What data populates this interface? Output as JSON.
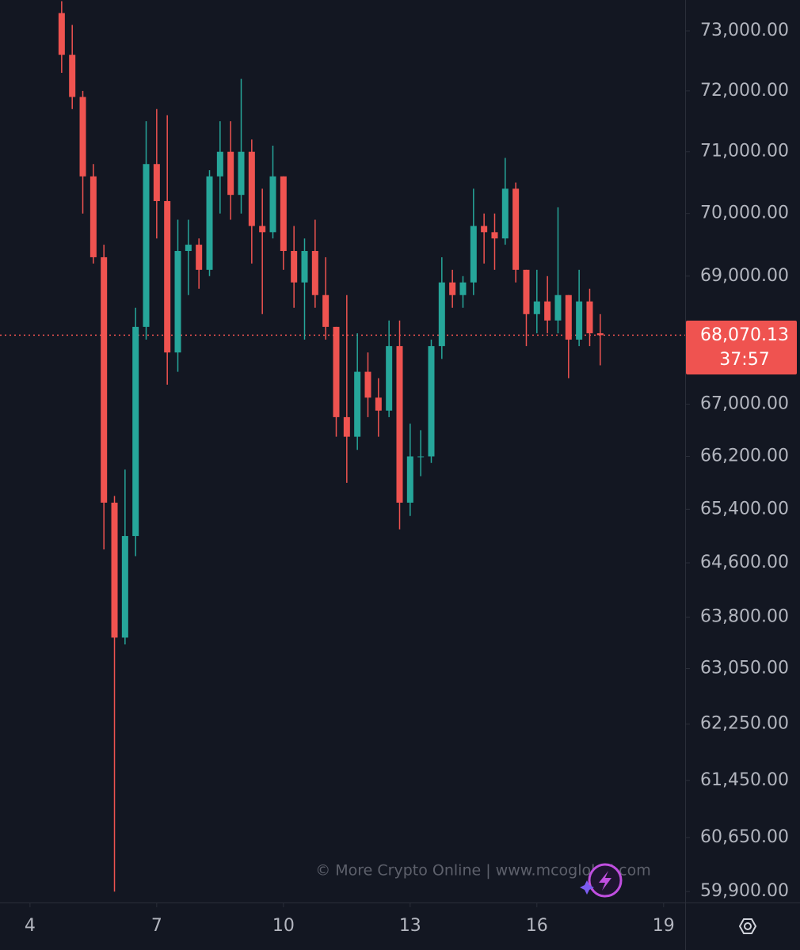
{
  "chart_data": {
    "type": "candlestick",
    "log_scale": true,
    "up_color": "#26a69a",
    "down_color": "#ef5350",
    "xlim": [
      3.29,
      19.51
    ],
    "xticks": [
      4,
      7,
      10,
      13,
      16,
      19
    ],
    "ylim": [
      59750,
      73520
    ],
    "yticks": [
      {
        "value": 59900,
        "label": "59,900.00"
      },
      {
        "value": 60650,
        "label": "60,650.00"
      },
      {
        "value": 61450,
        "label": "61,450.00"
      },
      {
        "value": 62250,
        "label": "62,250.00"
      },
      {
        "value": 63050,
        "label": "63,050.00"
      },
      {
        "value": 63800,
        "label": "63,800.00"
      },
      {
        "value": 64600,
        "label": "64,600.00"
      },
      {
        "value": 65400,
        "label": "65,400.00"
      },
      {
        "value": 66200,
        "label": "66,200.00"
      },
      {
        "value": 67000,
        "label": "67,000.00"
      },
      {
        "value": 69000,
        "label": "69,000.00"
      },
      {
        "value": 70000,
        "label": "70,000.00"
      },
      {
        "value": 71000,
        "label": "71,000.00"
      },
      {
        "value": 72000,
        "label": "72,000.00"
      },
      {
        "value": 73000,
        "label": "73,000.00"
      }
    ],
    "last_price": {
      "value": 68070.13,
      "label": "68,070.13"
    },
    "countdown": "37:57",
    "watermark": "© More Crypto Online   |   www.mcoglobal.com",
    "x": [
      4.75,
      5,
      5.25,
      5.5,
      5.75,
      6,
      6.25,
      6.5,
      6.75,
      7,
      7.25,
      7.5,
      7.75,
      8,
      8.25,
      8.5,
      8.75,
      9,
      9.25,
      9.5,
      9.75,
      10,
      10.25,
      10.5,
      10.75,
      11,
      11.25,
      11.5,
      11.75,
      12,
      12.25,
      12.5,
      12.75,
      13,
      13.25,
      13.5,
      13.75,
      14,
      14.25,
      14.5,
      14.75,
      15,
      15.25,
      15.5,
      15.75,
      16,
      16.25,
      16.5,
      16.75,
      17,
      17.25,
      17.5
    ],
    "open": [
      73300,
      72600,
      71900,
      70600,
      69300,
      65500,
      63500,
      65000,
      68200,
      70800,
      70200,
      67800,
      69400,
      69500,
      69100,
      70600,
      71000,
      70300,
      71000,
      69800,
      69700,
      70600,
      69400,
      68900,
      69400,
      68700,
      68200,
      66800,
      66500,
      67500,
      67100,
      66900,
      67900,
      65500,
      66200,
      66200,
      67900,
      68900,
      68700,
      68900,
      69800,
      69700,
      69600,
      70400,
      69100,
      68400,
      68600,
      68300,
      68700,
      68000,
      68600,
      68100
    ],
    "high": [
      73500,
      73100,
      72000,
      70800,
      69500,
      65600,
      66000,
      68500,
      71500,
      71700,
      71600,
      69900,
      69900,
      69600,
      70700,
      71500,
      71500,
      72200,
      71200,
      70400,
      71100,
      70600,
      69800,
      69600,
      69900,
      69300,
      68200,
      68700,
      68100,
      67800,
      67400,
      68300,
      68300,
      66700,
      66600,
      68000,
      69300,
      69100,
      69000,
      70400,
      70000,
      70000,
      70900,
      70500,
      69100,
      69100,
      69000,
      70100,
      68700,
      69100,
      68800,
      68400
    ],
    "low": [
      72300,
      71700,
      70000,
      69200,
      64800,
      59900,
      63400,
      64700,
      68000,
      69600,
      67300,
      67500,
      68700,
      68800,
      69000,
      70000,
      69900,
      70000,
      69200,
      68400,
      69600,
      69100,
      68500,
      68000,
      68500,
      68000,
      66500,
      65800,
      66300,
      66800,
      66500,
      66800,
      65100,
      65300,
      65900,
      66100,
      67700,
      68500,
      68500,
      68700,
      69200,
      69100,
      69500,
      68900,
      67900,
      68100,
      68100,
      68100,
      67400,
      67900,
      67900,
      67600
    ],
    "close": [
      72600,
      71900,
      70600,
      69300,
      65500,
      63500,
      65000,
      68200,
      70800,
      70200,
      67800,
      69400,
      69500,
      69100,
      70600,
      71000,
      70300,
      71000,
      69800,
      69700,
      70600,
      69400,
      68900,
      69400,
      68700,
      68200,
      66800,
      66500,
      67500,
      67100,
      66900,
      67900,
      65500,
      66200,
      66200,
      67900,
      68900,
      68700,
      68900,
      69800,
      69700,
      69600,
      70400,
      69100,
      68400,
      68600,
      68300,
      68700,
      68000,
      68600,
      68100,
      68070.13
    ]
  }
}
